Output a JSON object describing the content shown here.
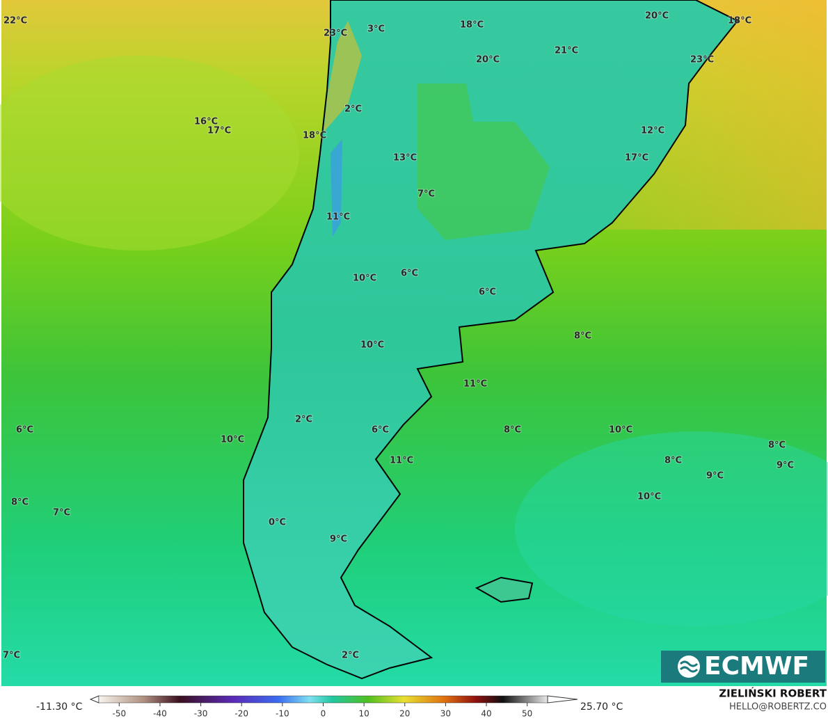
{
  "map": {
    "labels": [
      "22°C",
      "23°C",
      "3°C",
      "18°C",
      "20°C",
      "18°C",
      "21°C",
      "20°C",
      "23°C",
      "2°C",
      "16°C",
      "17°C",
      "12°C",
      "18°C",
      "13°C",
      "17°C",
      "7°C",
      "11°C",
      "6°C",
      "10°C",
      "6°C",
      "8°C",
      "10°C",
      "11°C",
      "6°C",
      "2°C",
      "6°C",
      "8°C",
      "10°C",
      "10°C",
      "8°C",
      "11°C",
      "8°C",
      "9°C",
      "9°C",
      "8°C",
      "10°C",
      "7°C",
      "0°C",
      "9°C",
      "7°C",
      "2°C"
    ],
    "logo": "ECMWF"
  },
  "colorbar": {
    "min_label": "-11.30 °C",
    "max_label": "25.70 °C",
    "ticks": [
      -50,
      -40,
      -30,
      -20,
      -10,
      0,
      10,
      20,
      30,
      40,
      50
    ],
    "range": [
      -55,
      55
    ]
  },
  "credits": {
    "author": "ZIELIŃSKI ROBERT",
    "contact": "HELLO@ROBERTZ.CO"
  }
}
